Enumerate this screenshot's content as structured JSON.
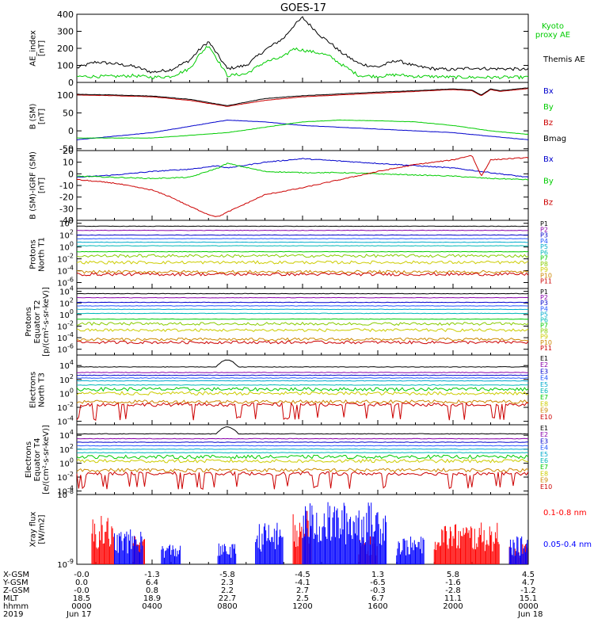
{
  "title": "GOES-17",
  "chart_data": [
    {
      "type": "line",
      "ylabel": [
        "AE_index",
        "[nT]"
      ],
      "yticks": [
        "400",
        "300",
        "200",
        "100",
        "0"
      ],
      "ylim": [
        0,
        400
      ],
      "legend": [
        {
          "label": [
            "Kyoto",
            "proxy AE"
          ],
          "color": "#00cc00"
        },
        {
          "label": [
            "Themis AE"
          ],
          "color": "#000000"
        }
      ],
      "series": [
        {
          "name": "Themis AE",
          "color": "#000000",
          "x": [
            0,
            1,
            2,
            3,
            4,
            5,
            6,
            6.5,
            7,
            7.5,
            8,
            9,
            10,
            11,
            11.5,
            12,
            13,
            13.5,
            14,
            15,
            16,
            17,
            18,
            19,
            20,
            21,
            22,
            23,
            24
          ],
          "y": [
            85,
            120,
            110,
            95,
            60,
            75,
            130,
            190,
            240,
            160,
            80,
            100,
            190,
            260,
            330,
            380,
            270,
            230,
            180,
            110,
            90,
            130,
            95,
            80,
            75,
            85,
            80,
            80,
            75
          ]
        },
        {
          "name": "Kyoto proxy AE",
          "color": "#00cc00",
          "x": [
            0,
            1,
            2,
            3,
            4,
            5,
            6,
            6.5,
            7,
            7.5,
            8,
            9,
            10,
            11,
            11.5,
            12,
            13,
            13.5,
            14,
            15,
            16,
            17,
            18,
            19,
            20,
            21,
            22,
            23,
            24
          ],
          "y": [
            35,
            35,
            35,
            40,
            30,
            35,
            80,
            160,
            220,
            130,
            40,
            50,
            120,
            150,
            200,
            190,
            170,
            150,
            110,
            40,
            35,
            45,
            35,
            35,
            30,
            30,
            30,
            30,
            30
          ]
        }
      ]
    },
    {
      "type": "line",
      "ylabel": [
        "B (SM)",
        "[nT]"
      ],
      "yticks": [
        "100",
        "50",
        "0",
        "-50"
      ],
      "ylim": [
        -55,
        135
      ],
      "legend": [
        {
          "label": [
            "Bx"
          ],
          "color": "#0000cc"
        },
        {
          "label": [
            "By"
          ],
          "color": "#00cc00"
        },
        {
          "label": [
            "Bz"
          ],
          "color": "#cc0000"
        },
        {
          "label": [
            "Bmag"
          ],
          "color": "#000000"
        }
      ],
      "series": [
        {
          "name": "Bx",
          "color": "#0000cc",
          "x": [
            0,
            4,
            8,
            10,
            12,
            14,
            16,
            18,
            20,
            22,
            24
          ],
          "y": [
            -25,
            -5,
            30,
            25,
            15,
            10,
            5,
            0,
            -5,
            -15,
            -25
          ]
        },
        {
          "name": "By",
          "color": "#00cc00",
          "x": [
            0,
            4,
            8,
            10,
            12,
            14,
            16,
            18,
            20,
            22,
            24
          ],
          "y": [
            -20,
            -20,
            -5,
            10,
            25,
            30,
            28,
            25,
            15,
            0,
            -10
          ]
        },
        {
          "name": "Bz",
          "color": "#cc0000",
          "x": [
            0,
            2,
            4,
            6,
            8,
            10,
            12,
            14,
            16,
            18,
            20,
            21,
            21.5,
            22,
            22.5,
            24
          ],
          "y": [
            100,
            98,
            95,
            85,
            68,
            85,
            95,
            100,
            105,
            110,
            115,
            112,
            98,
            115,
            110,
            118
          ]
        },
        {
          "name": "Bmag",
          "color": "#000000",
          "x": [
            0,
            2,
            4,
            6,
            8,
            10,
            12,
            14,
            16,
            18,
            20,
            21,
            21.5,
            22,
            22.5,
            24
          ],
          "y": [
            102,
            100,
            97,
            88,
            70,
            90,
            98,
            103,
            108,
            112,
            117,
            114,
            100,
            117,
            112,
            120
          ]
        }
      ]
    },
    {
      "type": "line",
      "ylabel": [
        "B (SM)-IGRF (SM)",
        "[nT]"
      ],
      "yticks": [
        "20",
        "10",
        "0",
        "-10",
        "-20",
        "-30",
        "-40"
      ],
      "ylim": [
        -40,
        20
      ],
      "legend": [
        {
          "label": [
            "Bx"
          ],
          "color": "#0000cc"
        },
        {
          "label": [
            "By"
          ],
          "color": "#00cc00"
        },
        {
          "label": [
            "Bz"
          ],
          "color": "#cc0000"
        }
      ],
      "series": [
        {
          "name": "Bx",
          "color": "#0000cc",
          "x": [
            0,
            2,
            4,
            6,
            7.5,
            8,
            10,
            12,
            14,
            16,
            18,
            20,
            22,
            24
          ],
          "y": [
            -3,
            -1,
            2,
            4,
            7,
            5,
            10,
            13,
            11,
            9,
            7,
            5,
            1,
            -3
          ]
        },
        {
          "name": "By",
          "color": "#00cc00",
          "x": [
            0,
            2,
            4,
            6,
            7.5,
            8,
            10,
            12,
            14,
            16,
            18,
            20,
            22,
            24
          ],
          "y": [
            -2,
            -3,
            -4,
            -3,
            5,
            9,
            2,
            1,
            1,
            0,
            -1,
            -2,
            -4,
            -5
          ]
        },
        {
          "name": "Bz",
          "color": "#cc0000",
          "x": [
            0,
            2,
            4,
            5,
            6,
            7,
            7.5,
            8,
            10,
            12,
            14,
            16,
            18,
            20,
            21,
            21.5,
            22,
            24
          ],
          "y": [
            -5,
            -8,
            -14,
            -20,
            -28,
            -35,
            -37,
            -33,
            -18,
            -12,
            -5,
            2,
            8,
            12,
            16,
            -2,
            12,
            14
          ]
        }
      ]
    },
    {
      "type": "line",
      "ylabel": [
        "Protons",
        "North T1"
      ],
      "yticks_exp": [
        "4",
        "2",
        "0",
        "-2",
        "-4",
        "-6"
      ],
      "ylim": [
        -7,
        4.5
      ],
      "channels": [
        "P1",
        "P2",
        "P3",
        "P4",
        "P5",
        "P6",
        "P7",
        "P8",
        "P9",
        "P10",
        "P11"
      ],
      "colors": [
        "#000000",
        "#8800aa",
        "#0000cc",
        "#2255ff",
        "#00aacc",
        "#00b8b8",
        "#00cc00",
        "#88cc00",
        "#cccc00",
        "#cc8800",
        "#cc0000"
      ],
      "levels": [
        3.5,
        2.8,
        2.0,
        1.4,
        0.8,
        0.2,
        -0.8,
        -1.5,
        -2.6,
        -4.2,
        -4.6
      ]
    },
    {
      "type": "line",
      "ylabel": [
        "Protons",
        "Equator T2",
        "[p/(cm²-s-sr-keV)]"
      ],
      "yticks_exp": [
        "4",
        "2",
        "0",
        "-2",
        "-4",
        "-6"
      ],
      "ylim": [
        -7,
        4.5
      ],
      "channels": [
        "P1",
        "P2",
        "P3",
        "P4",
        "P5",
        "P6",
        "P7",
        "P8",
        "P9",
        "P10",
        "P11"
      ],
      "colors": [
        "#000000",
        "#8800aa",
        "#0000cc",
        "#2255ff",
        "#00aacc",
        "#00b8b8",
        "#00cc00",
        "#88cc00",
        "#cccc00",
        "#cc8800",
        "#cc0000"
      ],
      "levels": [
        3.6,
        2.9,
        2.1,
        1.5,
        0.9,
        0.2,
        -0.8,
        -1.6,
        -2.7,
        -4.3,
        -4.8
      ]
    },
    {
      "type": "line",
      "ylabel": [
        "Electrons",
        "North T3"
      ],
      "yticks_exp": [
        "4",
        "2",
        "0",
        "-2",
        "-4"
      ],
      "ylim": [
        -4.5,
        5.5
      ],
      "channels": [
        "E1",
        "E2",
        "E3",
        "E4",
        "E5",
        "E6",
        "E7",
        "E8",
        "E9",
        "E10"
      ],
      "colors": [
        "#000000",
        "#8800aa",
        "#0000cc",
        "#2255ff",
        "#00aacc",
        "#00b8b8",
        "#00cc00",
        "#cccc00",
        "#cc8800",
        "#cc0000"
      ],
      "levels": [
        3.8,
        3.0,
        2.6,
        2.2,
        1.8,
        1.2,
        0.6,
        0.0,
        -1.2,
        -1.6
      ]
    },
    {
      "type": "line",
      "ylabel": [
        "Electrons",
        "Equator T4",
        "[e/(cm²-s-sr-keV)]"
      ],
      "yticks_exp": [
        "4",
        "2",
        "0",
        "-2",
        "-4"
      ],
      "ylim": [
        -4.5,
        5.5
      ],
      "channels": [
        "E1",
        "E2",
        "E3",
        "E4",
        "E5",
        "E6",
        "E7",
        "E8",
        "E9",
        "E10"
      ],
      "colors": [
        "#000000",
        "#8800aa",
        "#0000cc",
        "#2255ff",
        "#00aacc",
        "#00b8b8",
        "#00cc00",
        "#cccc00",
        "#cc8800",
        "#cc0000"
      ],
      "levels": [
        4.2,
        3.5,
        3.0,
        2.5,
        2.0,
        1.5,
        0.9,
        0.3,
        -1.0,
        -1.5
      ]
    },
    {
      "type": "bar",
      "ylabel": [
        "Xray flux",
        "[W/m2]"
      ],
      "yticks_exp": [
        "-8",
        "-9"
      ],
      "ylim": [
        -9,
        -8
      ],
      "legend": [
        {
          "label": [
            "0.1-0.8 nm"
          ],
          "color": "#ff0000"
        },
        {
          "label": [
            "0.05-0.4 nm"
          ],
          "color": "#0000ff"
        }
      ],
      "series": [
        {
          "name": "0.1-0.8 nm",
          "color": "#ff0000",
          "bursts": [
            [
              0.8,
              2.0,
              0.7
            ],
            [
              3.0,
              3.6,
              0.4
            ],
            [
              11.5,
              12.5,
              0.8
            ],
            [
              15.0,
              16.0,
              0.4
            ],
            [
              19.0,
              22.5,
              0.6
            ],
            [
              23.0,
              24,
              0.3
            ]
          ]
        },
        {
          "name": "0.05-0.4 nm",
          "color": "#0000ff",
          "bursts": [
            [
              2.0,
              3.5,
              0.5
            ],
            [
              4.5,
              5.5,
              0.3
            ],
            [
              7.5,
              8.5,
              0.3
            ],
            [
              9.5,
              11.0,
              0.6
            ],
            [
              12.0,
              16.5,
              0.9
            ],
            [
              17.0,
              18.5,
              0.4
            ],
            [
              23.0,
              24,
              0.4
            ]
          ]
        }
      ]
    }
  ],
  "footer": {
    "rows": [
      {
        "label": "X-GSM",
        "values": [
          "-0.0",
          "-1.3",
          "-5.8",
          "-4.5",
          "1.3",
          "5.8",
          "4.5"
        ]
      },
      {
        "label": "Y-GSM",
        "values": [
          "0.0",
          "6.4",
          "2.3",
          "-4.1",
          "-6.5",
          "-1.6",
          "4.7"
        ]
      },
      {
        "label": "Z-GSM",
        "values": [
          "-0.0",
          "0.8",
          "2.2",
          "2.7",
          "-0.3",
          "-2.8",
          "-1.2"
        ]
      },
      {
        "label": "MLT",
        "values": [
          "18.5",
          "18.9",
          "22.7",
          "2.5",
          "6.7",
          "11.1",
          "15.1"
        ]
      },
      {
        "label": "hhmm",
        "values": [
          "0000",
          "0400",
          "0800",
          "1200",
          "1600",
          "2000",
          "0000"
        ]
      },
      {
        "label": "2019",
        "values": [
          "Jun 17",
          "",
          "",
          "",
          "",
          "",
          "Jun 18"
        ]
      }
    ]
  }
}
